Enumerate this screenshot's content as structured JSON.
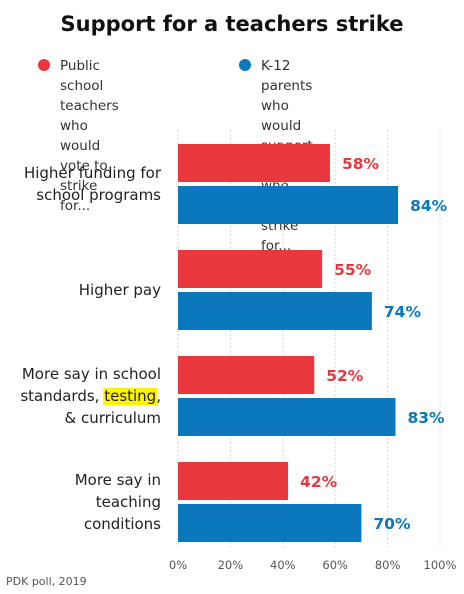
{
  "chart_data": {
    "type": "bar",
    "orientation": "horizontal",
    "title": "Support for a teachers strike",
    "categories": [
      [
        "Higher funding for",
        "school programs"
      ],
      [
        "Higher pay"
      ],
      [
        "More say in school",
        "standards, testing,",
        "& curriculum"
      ],
      [
        "More say in",
        "teaching",
        "conditions"
      ]
    ],
    "highlight_word": "testing",
    "series": [
      {
        "name": "Public school teachers\nwho would vote to\nstrike for...",
        "color": "#e8383d",
        "values": [
          58,
          55,
          52,
          42
        ],
        "labels": [
          "58%",
          "55%",
          "52%",
          "42%"
        ]
      },
      {
        "name": "K-12 parents who would\nsupport teachers who\ngo on strike for...",
        "color": "#0b78be",
        "values": [
          84,
          74,
          83,
          70
        ],
        "labels": [
          "84%",
          "74%",
          "83%",
          "70%"
        ]
      }
    ],
    "xlim": [
      0,
      100
    ],
    "xticks": [
      0,
      20,
      40,
      60,
      80,
      100
    ],
    "xtick_labels": [
      "0%",
      "20%",
      "40%",
      "60%",
      "80%",
      "100%"
    ],
    "grid": true,
    "legend_position": "top",
    "source": "PDK poll, 2019"
  },
  "colors": {
    "highlight": "#fff200",
    "grid": "#d8d8d8"
  }
}
